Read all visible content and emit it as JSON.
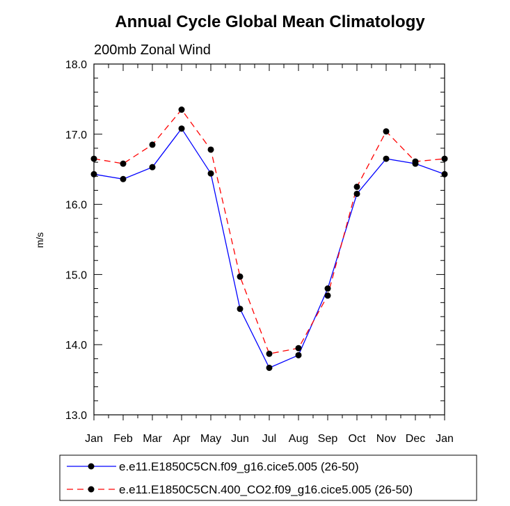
{
  "chart_data": {
    "type": "line",
    "title": "Annual Cycle Global Mean Climatology",
    "subtitle": "200mb Zonal Wind",
    "xlabel": "",
    "ylabel": "m/s",
    "categories": [
      "Jan",
      "Feb",
      "Mar",
      "Apr",
      "May",
      "Jun",
      "Jul",
      "Aug",
      "Sep",
      "Oct",
      "Nov",
      "Dec",
      "Jan"
    ],
    "ylim": [
      13.0,
      18.0
    ],
    "yticks": [
      "13.0",
      "14.0",
      "15.0",
      "16.0",
      "17.0",
      "18.0"
    ],
    "grid": false,
    "legend_position": "bottom",
    "series": [
      {
        "name": "e.e11.E1850C5CN.f09_g16.cice5.005 (26-50)",
        "color": "#0000ff",
        "dash": "solid",
        "values": [
          16.43,
          16.36,
          16.53,
          17.08,
          16.44,
          14.51,
          13.67,
          13.85,
          14.8,
          16.15,
          16.65,
          16.58,
          16.43
        ]
      },
      {
        "name": "e.e11.E1850C5CN.400_CO2.f09_g16.cice5.005 (26-50)",
        "color": "#ff0000",
        "dash": "dashed",
        "values": [
          16.65,
          16.58,
          16.85,
          17.35,
          16.78,
          14.97,
          13.87,
          13.95,
          14.7,
          16.25,
          17.04,
          16.61,
          16.65
        ]
      }
    ]
  }
}
